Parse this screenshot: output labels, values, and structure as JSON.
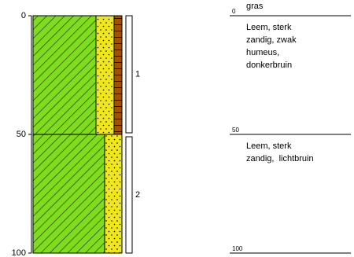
{
  "axis": {
    "ylim": [
      0,
      100
    ],
    "yticks": [
      0,
      50,
      100
    ]
  },
  "horizons": [
    {
      "label": "1"
    },
    {
      "label": "2"
    }
  ],
  "description": {
    "depths": [
      0,
      50,
      100
    ],
    "surface": "gras",
    "layers": [
      [
        "Leem, sterk",
        "zandig, zwak",
        "humeus,",
        "donkerbruin"
      ],
      [
        "Leem, sterk",
        "zandig,  lichtbruin"
      ]
    ]
  }
}
